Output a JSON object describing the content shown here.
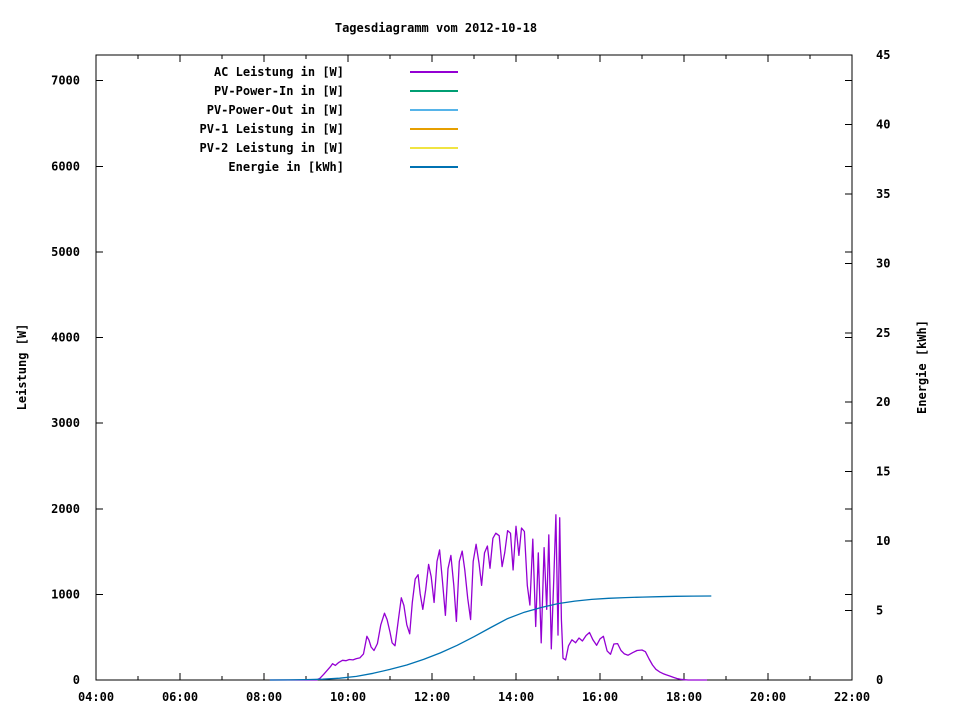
{
  "title": "Tagesdiagramm vom 2012-10-18",
  "chart_data": {
    "type": "line",
    "title": "Tagesdiagramm vom 2012-10-18",
    "grid": false,
    "legend_position": "top-left-inside",
    "x_axis": {
      "unit": "time",
      "range_hours": [
        4,
        22
      ],
      "major_tick_step_hours": 2,
      "minor_tick_step_hours": 1,
      "tick_labels": [
        {
          "h": 4,
          "label": "04:00"
        },
        {
          "h": 6,
          "label": "06:00"
        },
        {
          "h": 8,
          "label": "08:00"
        },
        {
          "h": 10,
          "label": "10:00"
        },
        {
          "h": 12,
          "label": "12:00"
        },
        {
          "h": 14,
          "label": "14:00"
        },
        {
          "h": 16,
          "label": "16:00"
        },
        {
          "h": 18,
          "label": "18:00"
        },
        {
          "h": 20,
          "label": "20:00"
        },
        {
          "h": 22,
          "label": "22:00"
        }
      ]
    },
    "y_axis_left": {
      "label": "Leistung [W]",
      "range": [
        0,
        7300
      ],
      "ticks": [
        0,
        1000,
        2000,
        3000,
        4000,
        5000,
        6000,
        7000
      ]
    },
    "y_axis_right": {
      "label": "Energie [kWh]",
      "range": [
        0,
        45
      ],
      "ticks": [
        0,
        5,
        10,
        15,
        20,
        25,
        30,
        35,
        40,
        45
      ]
    },
    "series": [
      {
        "name": "AC Leistung in [W]",
        "color": "#9400d3",
        "axis": "left",
        "points": [
          [
            8.14,
            0
          ],
          [
            8.4,
            0
          ],
          [
            8.7,
            0
          ],
          [
            9.0,
            0
          ],
          [
            9.25,
            0
          ],
          [
            9.33,
            20
          ],
          [
            9.42,
            65
          ],
          [
            9.5,
            110
          ],
          [
            9.58,
            155
          ],
          [
            9.63,
            190
          ],
          [
            9.7,
            170
          ],
          [
            9.78,
            205
          ],
          [
            9.87,
            230
          ],
          [
            9.95,
            225
          ],
          [
            10.03,
            240
          ],
          [
            10.12,
            235
          ],
          [
            10.2,
            250
          ],
          [
            10.28,
            258
          ],
          [
            10.37,
            305
          ],
          [
            10.45,
            510
          ],
          [
            10.5,
            465
          ],
          [
            10.55,
            385
          ],
          [
            10.62,
            345
          ],
          [
            10.7,
            425
          ],
          [
            10.78,
            645
          ],
          [
            10.87,
            780
          ],
          [
            10.93,
            705
          ],
          [
            11.0,
            560
          ],
          [
            11.05,
            435
          ],
          [
            11.12,
            400
          ],
          [
            11.2,
            705
          ],
          [
            11.27,
            960
          ],
          [
            11.33,
            870
          ],
          [
            11.4,
            645
          ],
          [
            11.47,
            540
          ],
          [
            11.53,
            905
          ],
          [
            11.6,
            1180
          ],
          [
            11.67,
            1230
          ],
          [
            11.72,
            1005
          ],
          [
            11.78,
            825
          ],
          [
            11.85,
            1055
          ],
          [
            11.92,
            1350
          ],
          [
            11.98,
            1205
          ],
          [
            12.05,
            905
          ],
          [
            12.12,
            1385
          ],
          [
            12.18,
            1520
          ],
          [
            12.25,
            1150
          ],
          [
            12.32,
            755
          ],
          [
            12.38,
            1300
          ],
          [
            12.45,
            1455
          ],
          [
            12.52,
            1105
          ],
          [
            12.58,
            685
          ],
          [
            12.65,
            1385
          ],
          [
            12.72,
            1505
          ],
          [
            12.78,
            1285
          ],
          [
            12.85,
            955
          ],
          [
            12.92,
            705
          ],
          [
            12.98,
            1385
          ],
          [
            13.05,
            1585
          ],
          [
            13.12,
            1365
          ],
          [
            13.18,
            1105
          ],
          [
            13.25,
            1485
          ],
          [
            13.32,
            1565
          ],
          [
            13.38,
            1305
          ],
          [
            13.45,
            1655
          ],
          [
            13.52,
            1715
          ],
          [
            13.6,
            1685
          ],
          [
            13.67,
            1325
          ],
          [
            13.73,
            1485
          ],
          [
            13.8,
            1745
          ],
          [
            13.87,
            1715
          ],
          [
            13.93,
            1285
          ],
          [
            14.0,
            1795
          ],
          [
            14.07,
            1455
          ],
          [
            14.13,
            1775
          ],
          [
            14.2,
            1735
          ],
          [
            14.27,
            1105
          ],
          [
            14.33,
            875
          ],
          [
            14.4,
            1645
          ],
          [
            14.47,
            625
          ],
          [
            14.53,
            1485
          ],
          [
            14.6,
            435
          ],
          [
            14.67,
            1545
          ],
          [
            14.73,
            825
          ],
          [
            14.78,
            1695
          ],
          [
            14.84,
            365
          ],
          [
            14.9,
            1185
          ],
          [
            14.95,
            1930
          ],
          [
            15.0,
            525
          ],
          [
            15.04,
            1895
          ],
          [
            15.08,
            705
          ],
          [
            15.12,
            255
          ],
          [
            15.18,
            235
          ],
          [
            15.25,
            400
          ],
          [
            15.33,
            470
          ],
          [
            15.42,
            435
          ],
          [
            15.5,
            490
          ],
          [
            15.58,
            455
          ],
          [
            15.67,
            520
          ],
          [
            15.75,
            555
          ],
          [
            15.83,
            470
          ],
          [
            15.92,
            405
          ],
          [
            16.0,
            480
          ],
          [
            16.08,
            510
          ],
          [
            16.17,
            340
          ],
          [
            16.25,
            300
          ],
          [
            16.33,
            420
          ],
          [
            16.42,
            425
          ],
          [
            16.5,
            345
          ],
          [
            16.58,
            305
          ],
          [
            16.67,
            290
          ],
          [
            16.78,
            320
          ],
          [
            16.88,
            345
          ],
          [
            17.0,
            350
          ],
          [
            17.08,
            330
          ],
          [
            17.17,
            245
          ],
          [
            17.25,
            175
          ],
          [
            17.33,
            125
          ],
          [
            17.42,
            95
          ],
          [
            17.5,
            75
          ],
          [
            17.58,
            60
          ],
          [
            17.67,
            45
          ],
          [
            17.75,
            30
          ],
          [
            17.83,
            18
          ],
          [
            17.92,
            8
          ],
          [
            18.0,
            3
          ],
          [
            18.1,
            0
          ],
          [
            18.3,
            0
          ],
          [
            18.55,
            0
          ]
        ]
      },
      {
        "name": "PV-Power-In in [W]",
        "color": "#009e73",
        "axis": "left",
        "points": []
      },
      {
        "name": "PV-Power-Out in [W]",
        "color": "#56b4e9",
        "axis": "left",
        "points": []
      },
      {
        "name": "PV-1 Leistung in [W]",
        "color": "#e69f00",
        "axis": "left",
        "points": []
      },
      {
        "name": "PV-2 Leistung in [W]",
        "color": "#f0e442",
        "axis": "left",
        "points": []
      },
      {
        "name": "Energie in [kWh]",
        "color": "#0072b2",
        "axis": "right",
        "points": [
          [
            8.14,
            0
          ],
          [
            8.6,
            0.01
          ],
          [
            9.0,
            0.03
          ],
          [
            9.4,
            0.06
          ],
          [
            9.8,
            0.13
          ],
          [
            10.2,
            0.26
          ],
          [
            10.6,
            0.48
          ],
          [
            11.0,
            0.76
          ],
          [
            11.4,
            1.08
          ],
          [
            11.8,
            1.48
          ],
          [
            12.2,
            1.95
          ],
          [
            12.6,
            2.5
          ],
          [
            13.0,
            3.12
          ],
          [
            13.4,
            3.78
          ],
          [
            13.8,
            4.42
          ],
          [
            14.2,
            4.88
          ],
          [
            14.6,
            5.22
          ],
          [
            15.0,
            5.5
          ],
          [
            15.4,
            5.68
          ],
          [
            15.8,
            5.8
          ],
          [
            16.2,
            5.88
          ],
          [
            16.6,
            5.93
          ],
          [
            17.0,
            5.97
          ],
          [
            17.4,
            6.0
          ],
          [
            17.8,
            6.03
          ],
          [
            18.2,
            6.04
          ],
          [
            18.65,
            6.05
          ]
        ]
      }
    ]
  }
}
